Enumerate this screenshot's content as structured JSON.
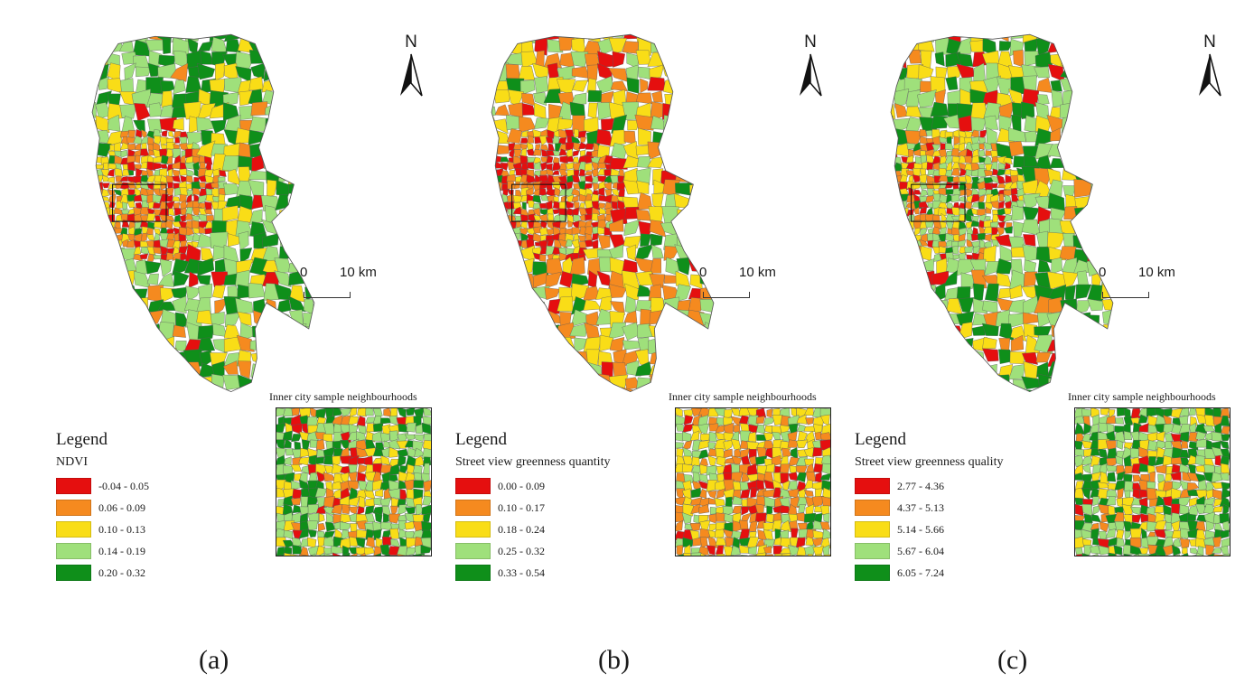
{
  "panels": [
    {
      "id": "a",
      "caption": "(a)",
      "legend_title": "Legend",
      "variable": "NDVI",
      "classes": [
        {
          "label": "-0.04 - 0.05",
          "color": "#e50f0f"
        },
        {
          "label": "0.06 - 0.09",
          "color": "#f58a1f"
        },
        {
          "label": "0.10 - 0.13",
          "color": "#f9dd17"
        },
        {
          "label": "0.14 - 0.19",
          "color": "#9fe07b"
        },
        {
          "label": "0.20 - 0.32",
          "color": "#0f8f1a"
        }
      ],
      "inset_title": "Inner city sample neighbourhoods",
      "north_label": "N",
      "scale_start": "0",
      "scale_end": "10 km"
    },
    {
      "id": "b",
      "caption": "(b)",
      "legend_title": "Legend",
      "variable": "Street view greenness quantity",
      "classes": [
        {
          "label": "0.00 - 0.09",
          "color": "#e50f0f"
        },
        {
          "label": "0.10 - 0.17",
          "color": "#f58a1f"
        },
        {
          "label": "0.18 - 0.24",
          "color": "#f9dd17"
        },
        {
          "label": "0.25 - 0.32",
          "color": "#9fe07b"
        },
        {
          "label": "0.33 - 0.54",
          "color": "#0f8f1a"
        }
      ],
      "inset_title": "Inner city sample neighbourhoods",
      "north_label": "N",
      "scale_start": "0",
      "scale_end": "10 km"
    },
    {
      "id": "c",
      "caption": "(c)",
      "legend_title": "Legend",
      "variable": "Street view greenness quality",
      "classes": [
        {
          "label": "2.77 - 4.36",
          "color": "#e50f0f"
        },
        {
          "label": "4.37 - 5.13",
          "color": "#f58a1f"
        },
        {
          "label": "5.14 - 5.66",
          "color": "#f9dd17"
        },
        {
          "label": "5.67 - 6.04",
          "color": "#9fe07b"
        },
        {
          "label": "6.05 - 7.24",
          "color": "#0f8f1a"
        }
      ],
      "inset_title": "Inner city sample neighbourhoods",
      "north_label": "N",
      "scale_start": "0",
      "scale_end": "10 km"
    }
  ]
}
